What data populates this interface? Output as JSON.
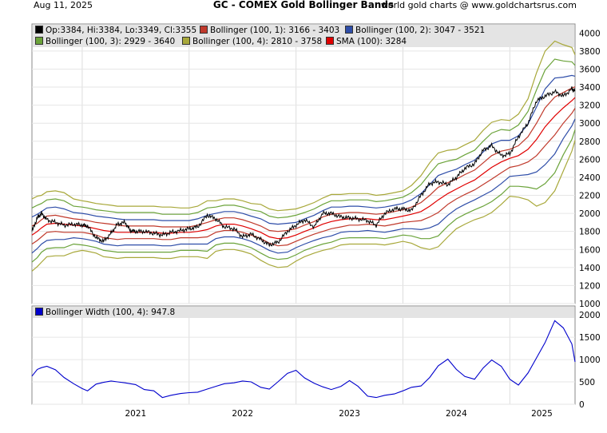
{
  "header": {
    "date": "Aug 11, 2025",
    "title": "GC - COMEX Gold Bollinger Bands",
    "source": "world gold charts @ www.goldchartsrus.com"
  },
  "chart_data": [
    {
      "type": "line",
      "panel": "price",
      "ylim": [
        1000,
        4100
      ],
      "yticks": [
        1000,
        1200,
        1400,
        1600,
        1800,
        2000,
        2200,
        2400,
        2600,
        2800,
        3000,
        3200,
        3400,
        3600,
        3800,
        4000
      ],
      "xlim": [
        2020.53,
        2025.61
      ],
      "xticks": [
        "2021",
        "2022",
        "2023",
        "2024",
        "2025"
      ],
      "grid": true,
      "legend_position": "top-left",
      "legend": [
        {
          "label": "Op:3384, Hi:3384, Lo:3349, Cl:3355",
          "color": "#000000"
        },
        {
          "label": "Bollinger (100, 1): 3166 - 3403",
          "color": "#c0392b"
        },
        {
          "label": "Bollinger (100, 2): 3047 - 3521",
          "color": "#2e4da8"
        },
        {
          "label": "Bollinger (100, 3): 2929 - 3640",
          "color": "#6ba33a"
        },
        {
          "label": "Bollinger (100, 4): 2810 - 3758",
          "color": "#a8a83a"
        },
        {
          "label": "SMA (100): 3284",
          "color": "#e00000"
        }
      ],
      "series": [
        {
          "name": "Op:3384, Hi:3384, Lo:3349, Cl:3355",
          "color": "#000000",
          "x": [
            2020.53,
            2020.58,
            2020.62,
            2020.67,
            2020.75,
            2020.83,
            2020.92,
            2021.0,
            2021.05,
            2021.13,
            2021.2,
            2021.27,
            2021.33,
            2021.4,
            2021.45,
            2021.5,
            2021.58,
            2021.67,
            2021.75,
            2021.83,
            2021.92,
            2022.0,
            2022.08,
            2022.17,
            2022.25,
            2022.33,
            2022.42,
            2022.5,
            2022.58,
            2022.67,
            2022.75,
            2022.83,
            2022.92,
            2023.0,
            2023.08,
            2023.17,
            2023.25,
            2023.33,
            2023.42,
            2023.5,
            2023.58,
            2023.67,
            2023.75,
            2023.83,
            2023.92,
            2024.0,
            2024.08,
            2024.17,
            2024.25,
            2024.33,
            2024.42,
            2024.5,
            2024.58,
            2024.67,
            2024.75,
            2024.83,
            2024.92,
            2025.0,
            2025.08,
            2025.17,
            2025.25,
            2025.33,
            2025.42,
            2025.5,
            2025.58,
            2025.61
          ],
          "values": [
            1800,
            1950,
            2000,
            1930,
            1900,
            1870,
            1880,
            1870,
            1860,
            1730,
            1690,
            1780,
            1880,
            1900,
            1810,
            1800,
            1800,
            1780,
            1760,
            1790,
            1810,
            1830,
            1850,
            1980,
            1940,
            1850,
            1830,
            1740,
            1770,
            1710,
            1650,
            1680,
            1800,
            1870,
            1930,
            1850,
            2000,
            2000,
            1960,
            1950,
            1940,
            1920,
            1870,
            2000,
            2050,
            2050,
            2030,
            2200,
            2330,
            2350,
            2320,
            2400,
            2500,
            2550,
            2700,
            2750,
            2640,
            2660,
            2850,
            3000,
            3250,
            3300,
            3350,
            3300,
            3380,
            3355
          ]
        },
        {
          "name": "SMA (100): 3284",
          "color": "#e00000",
          "x": [
            2020.53,
            2020.58,
            2020.62,
            2020.67,
            2020.75,
            2020.83,
            2020.92,
            2021.0,
            2021.05,
            2021.13,
            2021.2,
            2021.27,
            2021.33,
            2021.4,
            2021.45,
            2021.5,
            2021.58,
            2021.67,
            2021.75,
            2021.83,
            2021.92,
            2022.0,
            2022.08,
            2022.17,
            2022.25,
            2022.33,
            2022.42,
            2022.5,
            2022.58,
            2022.67,
            2022.75,
            2022.83,
            2022.92,
            2023.0,
            2023.08,
            2023.17,
            2023.25,
            2023.33,
            2023.42,
            2023.5,
            2023.58,
            2023.67,
            2023.75,
            2023.83,
            2023.92,
            2024.0,
            2024.08,
            2024.17,
            2024.25,
            2024.33,
            2024.42,
            2024.5,
            2024.58,
            2024.67,
            2024.75,
            2024.83,
            2024.92,
            2025.0,
            2025.08,
            2025.17,
            2025.25,
            2025.33,
            2025.42,
            2025.5,
            2025.58,
            2025.61
          ],
          "values": [
            1760,
            1800,
            1840,
            1880,
            1890,
            1880,
            1870,
            1860,
            1850,
            1830,
            1810,
            1800,
            1790,
            1790,
            1790,
            1790,
            1790,
            1790,
            1780,
            1780,
            1790,
            1790,
            1800,
            1820,
            1860,
            1880,
            1880,
            1860,
            1830,
            1790,
            1740,
            1720,
            1730,
            1760,
            1800,
            1840,
            1880,
            1910,
            1930,
            1940,
            1940,
            1940,
            1930,
            1930,
            1950,
            1970,
            1990,
            2020,
            2080,
            2150,
            2220,
            2270,
            2320,
            2370,
            2440,
            2510,
            2570,
            2610,
            2640,
            2710,
            2820,
            2960,
            3080,
            3170,
            3250,
            3284
          ]
        },
        {
          "name": "Bollinger (100, 1): 3166 - 3403",
          "color": "#c0392b",
          "band_upper": [
            1860,
            1890,
            1930,
            1970,
            1980,
            1960,
            1940,
            1930,
            1920,
            1900,
            1890,
            1880,
            1870,
            1860,
            1860,
            1860,
            1860,
            1860,
            1850,
            1850,
            1850,
            1850,
            1870,
            1900,
            1930,
            1950,
            1950,
            1930,
            1900,
            1860,
            1810,
            1800,
            1810,
            1830,
            1870,
            1910,
            1960,
            1990,
            2000,
            2010,
            2010,
            2000,
            1990,
            2000,
            2020,
            2040,
            2070,
            2120,
            2200,
            2290,
            2340,
            2380,
            2430,
            2480,
            2560,
            2640,
            2690,
            2710,
            2750,
            2850,
            3000,
            3170,
            3290,
            3340,
            3390,
            3403
          ],
          "band_lower": [
            1660,
            1700,
            1740,
            1790,
            1800,
            1790,
            1790,
            1790,
            1780,
            1760,
            1730,
            1720,
            1710,
            1720,
            1720,
            1720,
            1720,
            1720,
            1710,
            1710,
            1730,
            1730,
            1730,
            1740,
            1790,
            1810,
            1810,
            1790,
            1760,
            1720,
            1670,
            1640,
            1650,
            1690,
            1730,
            1770,
            1800,
            1830,
            1850,
            1870,
            1870,
            1880,
            1870,
            1860,
            1880,
            1900,
            1910,
            1920,
            1960,
            2010,
            2100,
            2160,
            2210,
            2260,
            2320,
            2380,
            2450,
            2510,
            2530,
            2570,
            2640,
            2750,
            2870,
            3000,
            3110,
            3166
          ]
        },
        {
          "name": "Bollinger (100, 2): 3047 - 3521",
          "color": "#2e4da8",
          "band_upper": [
            1960,
            1990,
            2020,
            2060,
            2070,
            2050,
            2010,
            2000,
            1990,
            1970,
            1960,
            1950,
            1940,
            1930,
            1930,
            1930,
            1930,
            1930,
            1920,
            1920,
            1920,
            1920,
            1940,
            1980,
            2000,
            2020,
            2020,
            2000,
            1970,
            1940,
            1890,
            1880,
            1890,
            1900,
            1940,
            1980,
            2030,
            2070,
            2070,
            2080,
            2080,
            2070,
            2060,
            2070,
            2090,
            2110,
            2150,
            2220,
            2320,
            2420,
            2460,
            2490,
            2540,
            2590,
            2680,
            2770,
            2810,
            2810,
            2860,
            2990,
            3180,
            3380,
            3500,
            3510,
            3530,
            3521
          ]
        },
        {
          "name": "Bollinger (100, 3): 2929 - 3640",
          "color": "#6ba33a",
          "band_upper": [
            2060,
            2090,
            2110,
            2150,
            2160,
            2140,
            2080,
            2070,
            2060,
            2040,
            2030,
            2020,
            2010,
            2010,
            2010,
            2010,
            2010,
            2010,
            1990,
            1990,
            1990,
            1990,
            2010,
            2060,
            2070,
            2090,
            2090,
            2070,
            2040,
            2020,
            1970,
            1950,
            1960,
            1980,
            2010,
            2050,
            2100,
            2140,
            2140,
            2150,
            2150,
            2150,
            2130,
            2140,
            2160,
            2180,
            2230,
            2320,
            2440,
            2550,
            2580,
            2600,
            2650,
            2700,
            2800,
            2890,
            2930,
            2920,
            2980,
            3130,
            3370,
            3590,
            3710,
            3690,
            3680,
            3640
          ]
        },
        {
          "name": "Bollinger (100, 4): 2810 - 3758",
          "color": "#a8a83a",
          "band_upper": [
            2160,
            2190,
            2200,
            2240,
            2250,
            2230,
            2160,
            2140,
            2130,
            2110,
            2100,
            2090,
            2080,
            2080,
            2080,
            2080,
            2080,
            2080,
            2070,
            2070,
            2060,
            2060,
            2080,
            2140,
            2140,
            2160,
            2160,
            2140,
            2110,
            2100,
            2050,
            2030,
            2040,
            2050,
            2080,
            2120,
            2170,
            2210,
            2210,
            2220,
            2220,
            2220,
            2200,
            2210,
            2230,
            2250,
            2310,
            2420,
            2560,
            2670,
            2700,
            2710,
            2760,
            2810,
            2920,
            3010,
            3040,
            3030,
            3100,
            3270,
            3560,
            3800,
            3910,
            3870,
            3840,
            3758
          ],
          "band_lower": [
            1360,
            1410,
            1460,
            1520,
            1530,
            1530,
            1570,
            1590,
            1580,
            1560,
            1520,
            1510,
            1500,
            1510,
            1510,
            1510,
            1510,
            1510,
            1500,
            1500,
            1520,
            1520,
            1520,
            1500,
            1580,
            1600,
            1600,
            1580,
            1550,
            1480,
            1430,
            1400,
            1410,
            1470,
            1520,
            1560,
            1590,
            1610,
            1650,
            1660,
            1660,
            1660,
            1660,
            1650,
            1670,
            1690,
            1670,
            1620,
            1600,
            1630,
            1740,
            1830,
            1880,
            1930,
            1960,
            2010,
            2100,
            2190,
            2180,
            2150,
            2080,
            2120,
            2250,
            2470,
            2690,
            2810
          ]
        }
      ]
    },
    {
      "type": "line",
      "panel": "width",
      "ylim": [
        0,
        2200
      ],
      "yticks": [
        0,
        500,
        1000,
        1500,
        2000
      ],
      "grid": true,
      "legend": [
        {
          "label": "Bollinger Width (100, 4): 947.8",
          "color": "#0000cc"
        }
      ],
      "series": [
        {
          "name": "Bollinger Width (100, 4): 947.8",
          "color": "#0000cc",
          "x": [
            2020.53,
            2020.58,
            2020.62,
            2020.67,
            2020.75,
            2020.83,
            2020.92,
            2021.0,
            2021.05,
            2021.13,
            2021.2,
            2021.27,
            2021.33,
            2021.4,
            2021.5,
            2021.58,
            2021.67,
            2021.75,
            2021.83,
            2021.92,
            2022.0,
            2022.08,
            2022.17,
            2022.25,
            2022.33,
            2022.42,
            2022.5,
            2022.58,
            2022.67,
            2022.75,
            2022.83,
            2022.92,
            2023.0,
            2023.08,
            2023.17,
            2023.25,
            2023.33,
            2023.42,
            2023.5,
            2023.58,
            2023.67,
            2023.75,
            2023.83,
            2023.92,
            2024.0,
            2024.08,
            2024.17,
            2024.25,
            2024.33,
            2024.42,
            2024.5,
            2024.58,
            2024.67,
            2024.75,
            2024.83,
            2024.92,
            2025.0,
            2025.08,
            2025.17,
            2025.25,
            2025.33,
            2025.42,
            2025.5,
            2025.58,
            2025.61
          ],
          "values": [
            630,
            780,
            820,
            850,
            770,
            600,
            460,
            350,
            300,
            450,
            490,
            520,
            500,
            480,
            440,
            330,
            300,
            150,
            200,
            240,
            260,
            270,
            340,
            400,
            460,
            480,
            520,
            500,
            380,
            340,
            500,
            690,
            760,
            590,
            470,
            390,
            330,
            400,
            530,
            400,
            180,
            150,
            200,
            230,
            300,
            380,
            410,
            600,
            860,
            1010,
            780,
            620,
            560,
            810,
            990,
            850,
            560,
            430,
            700,
            1040,
            1380,
            1870,
            1710,
            1350,
            948
          ]
        }
      ]
    }
  ]
}
